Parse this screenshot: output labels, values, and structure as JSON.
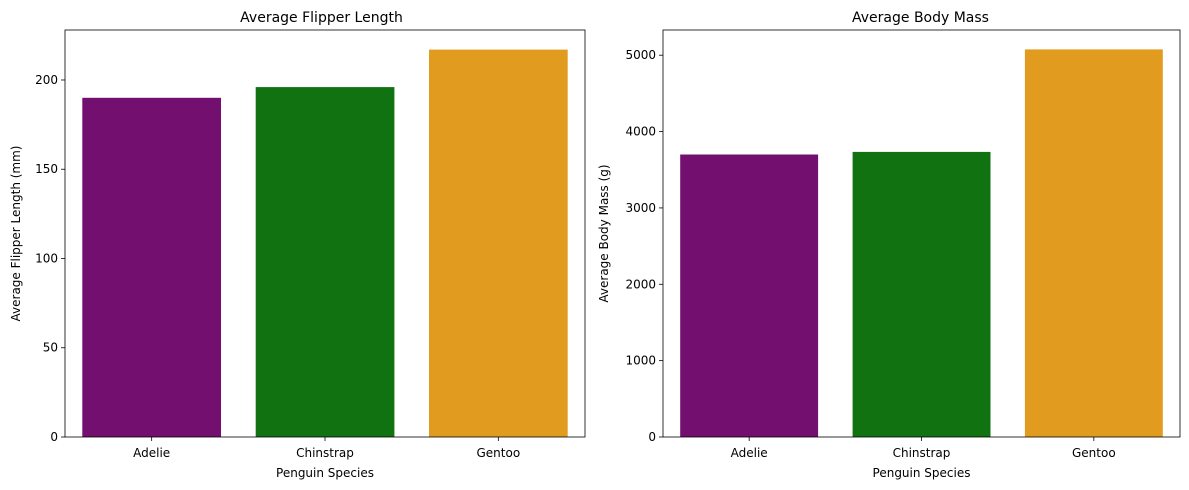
{
  "chart_data": [
    {
      "type": "bar",
      "title": "Average Flipper Length",
      "xlabel": "Penguin Species",
      "ylabel": "Average Flipper Length (mm)",
      "categories": [
        "Adelie",
        "Chinstrap",
        "Gentoo"
      ],
      "values": [
        190,
        196,
        217
      ],
      "colors": [
        "#730F6E",
        "#107210",
        "#E19C1F"
      ],
      "ylim": [
        0,
        228
      ],
      "yticks": [
        0,
        50,
        100,
        150,
        200
      ],
      "grid": false
    },
    {
      "type": "bar",
      "title": "Average Body Mass",
      "xlabel": "Penguin Species",
      "ylabel": "Average Body Mass (g)",
      "categories": [
        "Adelie",
        "Chinstrap",
        "Gentoo"
      ],
      "values": [
        3700,
        3733,
        5076
      ],
      "colors": [
        "#730F6E",
        "#107210",
        "#E19C1F"
      ],
      "ylim": [
        0,
        5330
      ],
      "yticks": [
        0,
        1000,
        2000,
        3000,
        4000,
        5000
      ],
      "grid": false
    }
  ]
}
